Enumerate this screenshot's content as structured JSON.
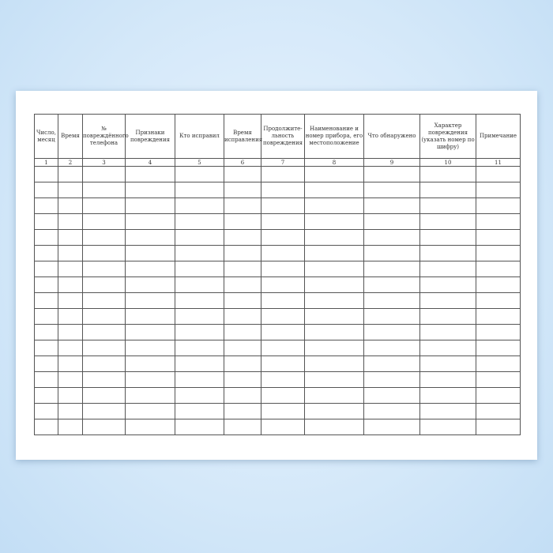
{
  "table": {
    "headers": [
      "Число, месяц",
      "Время",
      "№ повреждённого телефона",
      "Признаки повреждения",
      "Кто исправил",
      "Время исправления",
      "Продолжите-льность повреждения",
      "Наименование и номер прибора, его местоположение",
      "Что обнаружено",
      "Характер повреждения (указать номер по шифру)",
      "Примечание"
    ],
    "numbers": [
      "1",
      "2",
      "3",
      "4",
      "5",
      "6",
      "7",
      "8",
      "9",
      "10",
      "11"
    ],
    "empty_rows": 17
  }
}
